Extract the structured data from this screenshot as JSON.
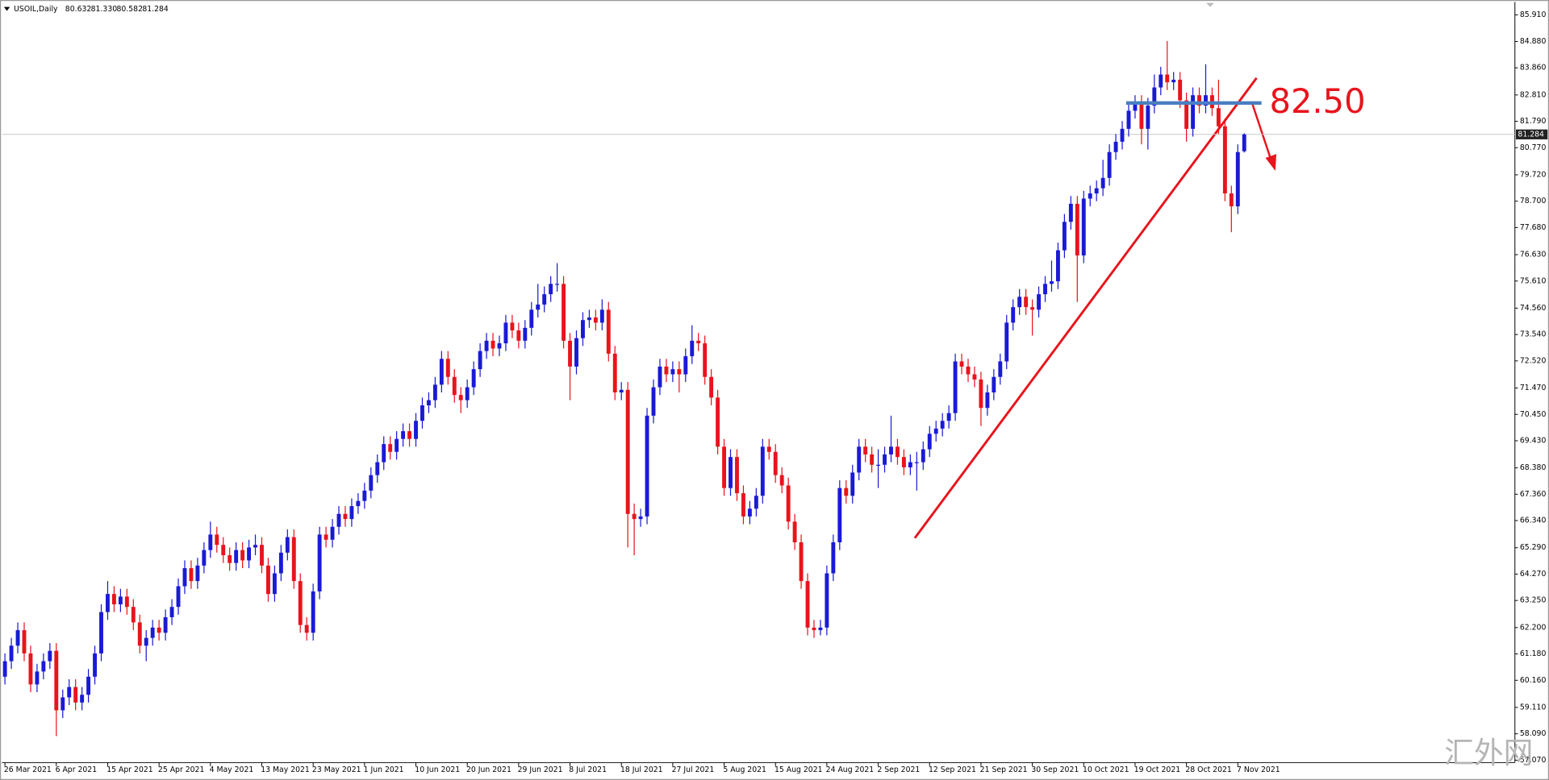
{
  "chart_data": {
    "type": "candlestick",
    "header": {
      "symbol": "USOIL,Daily",
      "ohlc": [
        "80.632",
        "81.330",
        "80.582",
        "81.284"
      ]
    },
    "up_color": "#1a1ad6",
    "down_color": "#e8141c",
    "ylim": [
      56.99,
      86.37
    ],
    "yticks": [
      {
        "value": 85.91,
        "label": "85.910"
      },
      {
        "value": 84.88,
        "label": "84.880"
      },
      {
        "value": 83.86,
        "label": "83.860"
      },
      {
        "value": 82.81,
        "label": "82.810"
      },
      {
        "value": 81.79,
        "label": "81.790"
      },
      {
        "value": 80.77,
        "label": "80.770"
      },
      {
        "value": 79.72,
        "label": "79.720"
      },
      {
        "value": 78.7,
        "label": "78.700"
      },
      {
        "value": 77.68,
        "label": "77.680"
      },
      {
        "value": 76.63,
        "label": "76.630"
      },
      {
        "value": 75.61,
        "label": "75.610"
      },
      {
        "value": 74.56,
        "label": "74.560"
      },
      {
        "value": 73.54,
        "label": "73.540"
      },
      {
        "value": 72.52,
        "label": "72.520"
      },
      {
        "value": 71.47,
        "label": "71.470"
      },
      {
        "value": 70.45,
        "label": "70.450"
      },
      {
        "value": 69.43,
        "label": "69.430"
      },
      {
        "value": 68.38,
        "label": "68.380"
      },
      {
        "value": 67.36,
        "label": "67.360"
      },
      {
        "value": 66.34,
        "label": "66.340"
      },
      {
        "value": 65.29,
        "label": "65.290"
      },
      {
        "value": 64.27,
        "label": "64.270"
      },
      {
        "value": 63.25,
        "label": "63.250"
      },
      {
        "value": 62.2,
        "label": "62.200"
      },
      {
        "value": 61.18,
        "label": "61.180"
      },
      {
        "value": 60.16,
        "label": "60.160"
      },
      {
        "value": 59.11,
        "label": "59.110"
      },
      {
        "value": 58.09,
        "label": "58.090"
      },
      {
        "value": 57.07,
        "label": "57.070"
      }
    ],
    "price_line": {
      "value": 81.284,
      "label": "81.284"
    },
    "level": {
      "value": 82.5,
      "label": "82.50"
    },
    "watermark": "汇外网",
    "categories": [
      "26 Mar 2021",
      null,
      null,
      null,
      null,
      null,
      null,
      null,
      "6 Apr 2021",
      null,
      null,
      null,
      null,
      null,
      null,
      null,
      "15 Apr 2021",
      null,
      null,
      null,
      null,
      null,
      null,
      null,
      "25 Apr 2021",
      null,
      null,
      null,
      null,
      null,
      null,
      null,
      "4 May 2021",
      null,
      null,
      null,
      null,
      null,
      null,
      null,
      "13 May 2021",
      null,
      null,
      null,
      null,
      null,
      null,
      null,
      "23 May 2021",
      null,
      null,
      null,
      null,
      null,
      null,
      null,
      "1 Jun 2021",
      null,
      null,
      null,
      null,
      null,
      null,
      null,
      "10 Jun 2021",
      null,
      null,
      null,
      null,
      null,
      null,
      null,
      "20 Jun 2021",
      null,
      null,
      null,
      null,
      null,
      null,
      null,
      "29 Jun 2021",
      null,
      null,
      null,
      null,
      null,
      null,
      null,
      "8 Jul 2021",
      null,
      null,
      null,
      null,
      null,
      null,
      null,
      "18 Jul 2021",
      null,
      null,
      null,
      null,
      null,
      null,
      null,
      "27 Jul 2021",
      null,
      null,
      null,
      null,
      null,
      null,
      null,
      "5 Aug 2021",
      null,
      null,
      null,
      null,
      null,
      null,
      null,
      "15 Aug 2021",
      null,
      null,
      null,
      null,
      null,
      null,
      null,
      "24 Aug 2021",
      null,
      null,
      null,
      null,
      null,
      null,
      null,
      "2 Sep 2021",
      null,
      null,
      null,
      null,
      null,
      null,
      null,
      "12 Sep 2021",
      null,
      null,
      null,
      null,
      null,
      null,
      null,
      "21 Sep 2021",
      null,
      null,
      null,
      null,
      null,
      null,
      null,
      "30 Sep 2021",
      null,
      null,
      null,
      null,
      null,
      null,
      null,
      "10 Oct 2021",
      null,
      null,
      null,
      null,
      null,
      null,
      null,
      "19 Oct 2021",
      null,
      null,
      null,
      null,
      null,
      null,
      null,
      "28 Oct 2021",
      null,
      null,
      null,
      null,
      null,
      null,
      null,
      "7 Nov 2021",
      null
    ],
    "ohlc": [
      [
        60.3,
        61.2,
        60.0,
        60.9
      ],
      [
        60.9,
        61.8,
        60.6,
        61.5
      ],
      [
        61.5,
        62.4,
        61.2,
        62.1
      ],
      [
        62.1,
        62.4,
        60.9,
        61.2
      ],
      [
        61.2,
        61.5,
        59.7,
        60.0
      ],
      [
        60.0,
        60.8,
        59.7,
        60.5
      ],
      [
        60.5,
        61.2,
        60.2,
        60.9
      ],
      [
        60.9,
        61.6,
        60.6,
        61.3
      ],
      [
        61.3,
        61.6,
        58.0,
        59.0
      ],
      [
        59.0,
        59.8,
        58.7,
        59.5
      ],
      [
        59.5,
        60.2,
        59.2,
        59.9
      ],
      [
        59.9,
        60.2,
        59.0,
        59.3
      ],
      [
        59.3,
        59.9,
        59.0,
        59.6
      ],
      [
        59.6,
        60.6,
        59.3,
        60.3
      ],
      [
        60.3,
        61.5,
        60.0,
        61.2
      ],
      [
        61.2,
        63.1,
        60.9,
        62.8
      ],
      [
        62.8,
        64.0,
        62.5,
        63.5
      ],
      [
        63.5,
        63.8,
        62.8,
        63.1
      ],
      [
        63.1,
        63.7,
        62.8,
        63.4
      ],
      [
        63.4,
        63.7,
        62.7,
        63.0
      ],
      [
        63.0,
        63.3,
        62.1,
        62.4
      ],
      [
        62.4,
        62.7,
        61.2,
        61.5
      ],
      [
        61.5,
        62.1,
        60.9,
        61.8
      ],
      [
        61.8,
        62.5,
        61.5,
        62.2
      ],
      [
        62.2,
        62.5,
        61.7,
        62.0
      ],
      [
        62.0,
        62.9,
        61.7,
        62.6
      ],
      [
        62.6,
        63.3,
        62.3,
        63.0
      ],
      [
        63.0,
        64.1,
        62.7,
        63.8
      ],
      [
        63.8,
        64.8,
        63.5,
        64.5
      ],
      [
        64.5,
        64.8,
        63.7,
        64.0
      ],
      [
        64.0,
        64.9,
        63.7,
        64.6
      ],
      [
        64.6,
        65.5,
        64.3,
        65.2
      ],
      [
        65.2,
        66.3,
        64.9,
        65.8
      ],
      [
        65.8,
        66.1,
        65.1,
        65.4
      ],
      [
        65.4,
        65.7,
        64.7,
        65.0
      ],
      [
        65.0,
        65.3,
        64.4,
        64.7
      ],
      [
        64.7,
        65.5,
        64.4,
        65.2
      ],
      [
        65.2,
        65.5,
        64.5,
        64.8
      ],
      [
        64.8,
        65.6,
        64.5,
        65.3
      ],
      [
        65.3,
        65.8,
        65.0,
        65.4
      ],
      [
        65.4,
        65.7,
        64.3,
        64.6
      ],
      [
        64.6,
        64.9,
        63.2,
        63.5
      ],
      [
        63.5,
        64.6,
        63.2,
        64.3
      ],
      [
        64.3,
        65.4,
        64.0,
        65.1
      ],
      [
        65.1,
        66.0,
        64.8,
        65.7
      ],
      [
        65.7,
        66.0,
        63.7,
        64.0
      ],
      [
        64.0,
        64.3,
        62.0,
        62.3
      ],
      [
        62.3,
        62.6,
        61.7,
        62.0
      ],
      [
        62.0,
        63.9,
        61.7,
        63.6
      ],
      [
        63.6,
        66.1,
        63.3,
        65.8
      ],
      [
        65.8,
        66.1,
        65.3,
        65.6
      ],
      [
        65.6,
        66.4,
        65.3,
        66.1
      ],
      [
        66.1,
        66.9,
        65.8,
        66.6
      ],
      [
        66.6,
        66.9,
        66.1,
        66.4
      ],
      [
        66.4,
        67.2,
        66.1,
        66.9
      ],
      [
        66.9,
        67.4,
        66.6,
        67.1
      ],
      [
        67.1,
        67.8,
        66.8,
        67.5
      ],
      [
        67.5,
        68.4,
        67.2,
        68.1
      ],
      [
        68.1,
        68.9,
        67.8,
        68.6
      ],
      [
        68.6,
        69.6,
        68.3,
        69.3
      ],
      [
        69.3,
        69.6,
        68.7,
        69.0
      ],
      [
        69.0,
        69.8,
        68.7,
        69.5
      ],
      [
        69.5,
        70.1,
        69.2,
        69.8
      ],
      [
        69.8,
        70.1,
        69.2,
        69.5
      ],
      [
        69.5,
        70.5,
        69.2,
        70.2
      ],
      [
        70.2,
        71.1,
        69.9,
        70.8
      ],
      [
        70.8,
        71.3,
        70.5,
        71.0
      ],
      [
        71.0,
        71.9,
        70.7,
        71.6
      ],
      [
        71.6,
        72.9,
        71.3,
        72.6
      ],
      [
        72.6,
        72.9,
        71.6,
        71.9
      ],
      [
        71.9,
        72.2,
        70.9,
        71.2
      ],
      [
        71.2,
        71.5,
        70.5,
        71.0
      ],
      [
        71.0,
        71.8,
        70.7,
        71.5
      ],
      [
        71.5,
        72.5,
        71.2,
        72.2
      ],
      [
        72.2,
        73.2,
        71.9,
        72.9
      ],
      [
        72.9,
        73.6,
        72.6,
        73.3
      ],
      [
        73.3,
        73.6,
        72.7,
        73.0
      ],
      [
        73.0,
        73.5,
        72.7,
        73.2
      ],
      [
        73.2,
        74.3,
        72.9,
        74.0
      ],
      [
        74.0,
        74.3,
        73.4,
        73.7
      ],
      [
        73.7,
        74.0,
        73.0,
        73.3
      ],
      [
        73.3,
        74.1,
        73.0,
        73.8
      ],
      [
        73.8,
        74.8,
        73.5,
        74.5
      ],
      [
        74.5,
        75.5,
        74.2,
        74.7
      ],
      [
        74.7,
        75.4,
        74.4,
        75.1
      ],
      [
        75.1,
        75.8,
        74.8,
        75.5
      ],
      [
        75.5,
        76.3,
        75.2,
        75.5
      ],
      [
        75.5,
        75.8,
        73.0,
        73.3
      ],
      [
        73.3,
        73.6,
        71.0,
        72.3
      ],
      [
        72.3,
        73.7,
        72.0,
        73.4
      ],
      [
        73.4,
        74.4,
        73.1,
        74.1
      ],
      [
        74.1,
        74.5,
        73.8,
        74.2
      ],
      [
        74.2,
        74.5,
        73.7,
        74.0
      ],
      [
        74.0,
        74.9,
        73.7,
        74.5
      ],
      [
        74.5,
        74.8,
        72.5,
        72.8
      ],
      [
        72.8,
        73.1,
        71.0,
        71.3
      ],
      [
        71.3,
        71.7,
        71.0,
        71.4
      ],
      [
        71.4,
        71.7,
        65.3,
        66.6
      ],
      [
        66.6,
        67.0,
        65.0,
        66.4
      ],
      [
        66.4,
        66.8,
        66.1,
        66.5
      ],
      [
        66.5,
        70.7,
        66.2,
        70.4
      ],
      [
        70.4,
        71.8,
        70.1,
        71.5
      ],
      [
        71.5,
        72.6,
        71.2,
        72.3
      ],
      [
        72.3,
        72.6,
        71.7,
        72.0
      ],
      [
        72.0,
        72.5,
        71.7,
        72.2
      ],
      [
        72.2,
        72.5,
        71.3,
        72.0
      ],
      [
        72.0,
        73.0,
        71.7,
        72.7
      ],
      [
        72.7,
        73.9,
        72.4,
        73.3
      ],
      [
        73.3,
        73.6,
        72.9,
        73.2
      ],
      [
        73.2,
        73.5,
        71.6,
        71.9
      ],
      [
        71.9,
        72.2,
        70.8,
        71.1
      ],
      [
        71.1,
        71.4,
        68.9,
        69.2
      ],
      [
        69.2,
        69.5,
        67.3,
        67.6
      ],
      [
        67.6,
        69.1,
        67.3,
        68.8
      ],
      [
        68.8,
        69.1,
        67.1,
        67.4
      ],
      [
        67.4,
        67.7,
        66.2,
        66.5
      ],
      [
        66.5,
        67.1,
        66.2,
        66.8
      ],
      [
        66.8,
        67.6,
        66.5,
        67.3
      ],
      [
        67.3,
        69.5,
        67.0,
        69.2
      ],
      [
        69.2,
        69.5,
        68.7,
        69.0
      ],
      [
        69.0,
        69.3,
        67.8,
        68.1
      ],
      [
        68.1,
        68.4,
        67.4,
        67.7
      ],
      [
        67.7,
        68.0,
        66.0,
        66.3
      ],
      [
        66.3,
        66.6,
        65.2,
        65.5
      ],
      [
        65.5,
        65.8,
        63.7,
        64.0
      ],
      [
        64.0,
        64.3,
        61.9,
        62.2
      ],
      [
        62.2,
        62.5,
        61.8,
        62.1
      ],
      [
        62.1,
        62.5,
        61.9,
        62.2
      ],
      [
        62.2,
        64.6,
        61.9,
        64.3
      ],
      [
        64.3,
        65.8,
        64.0,
        65.5
      ],
      [
        65.5,
        67.9,
        65.2,
        67.6
      ],
      [
        67.6,
        67.9,
        67.0,
        67.3
      ],
      [
        67.3,
        68.5,
        67.0,
        68.2
      ],
      [
        68.2,
        69.5,
        67.9,
        69.2
      ],
      [
        69.2,
        69.5,
        68.6,
        68.9
      ],
      [
        68.9,
        69.2,
        68.2,
        68.5
      ],
      [
        68.5,
        69.1,
        67.6,
        68.5
      ],
      [
        68.5,
        69.2,
        68.2,
        68.9
      ],
      [
        68.9,
        70.4,
        68.6,
        69.2
      ],
      [
        69.2,
        69.5,
        68.5,
        68.8
      ],
      [
        68.8,
        69.1,
        68.1,
        68.4
      ],
      [
        68.4,
        68.9,
        68.1,
        68.6
      ],
      [
        68.6,
        69.0,
        67.5,
        68.6
      ],
      [
        68.6,
        69.4,
        68.3,
        69.1
      ],
      [
        69.1,
        70.0,
        68.8,
        69.7
      ],
      [
        69.7,
        70.2,
        69.4,
        69.9
      ],
      [
        69.9,
        70.5,
        69.6,
        70.2
      ],
      [
        70.2,
        70.8,
        69.9,
        70.5
      ],
      [
        70.5,
        72.8,
        70.2,
        72.5
      ],
      [
        72.5,
        72.8,
        72.0,
        72.3
      ],
      [
        72.3,
        72.6,
        71.7,
        72.0
      ],
      [
        72.0,
        72.3,
        71.5,
        71.8
      ],
      [
        71.8,
        72.1,
        70.0,
        70.7
      ],
      [
        70.7,
        71.6,
        70.4,
        71.3
      ],
      [
        71.3,
        72.2,
        71.0,
        71.9
      ],
      [
        71.9,
        72.8,
        71.6,
        72.5
      ],
      [
        72.5,
        74.3,
        72.2,
        74.0
      ],
      [
        74.0,
        74.9,
        73.7,
        74.6
      ],
      [
        74.6,
        75.3,
        74.3,
        75.0
      ],
      [
        75.0,
        75.3,
        74.3,
        74.6
      ],
      [
        74.6,
        74.9,
        73.5,
        74.5
      ],
      [
        74.5,
        75.4,
        74.2,
        75.1
      ],
      [
        75.1,
        75.8,
        74.8,
        75.5
      ],
      [
        75.5,
        76.4,
        75.2,
        75.6
      ],
      [
        75.6,
        77.1,
        75.3,
        76.8
      ],
      [
        76.8,
        78.2,
        76.5,
        77.9
      ],
      [
        77.9,
        78.9,
        77.6,
        78.6
      ],
      [
        78.6,
        78.9,
        74.8,
        76.6
      ],
      [
        76.6,
        79.1,
        76.3,
        78.8
      ],
      [
        78.8,
        79.3,
        78.5,
        79.0
      ],
      [
        79.0,
        79.5,
        78.7,
        79.2
      ],
      [
        79.2,
        80.3,
        78.9,
        79.6
      ],
      [
        79.6,
        80.9,
        79.3,
        80.6
      ],
      [
        80.6,
        81.3,
        80.3,
        81.0
      ],
      [
        81.0,
        81.8,
        80.7,
        81.5
      ],
      [
        81.5,
        82.5,
        81.2,
        82.2
      ],
      [
        82.2,
        82.8,
        81.9,
        82.5
      ],
      [
        82.5,
        82.8,
        80.9,
        81.5
      ],
      [
        81.5,
        82.7,
        80.7,
        82.4
      ],
      [
        82.4,
        83.6,
        82.1,
        83.1
      ],
      [
        83.1,
        83.9,
        82.8,
        83.6
      ],
      [
        83.6,
        84.9,
        83.0,
        83.3
      ],
      [
        83.3,
        83.7,
        83.0,
        83.4
      ],
      [
        83.4,
        83.7,
        82.3,
        82.6
      ],
      [
        82.6,
        82.9,
        81.0,
        81.5
      ],
      [
        81.5,
        83.1,
        81.2,
        82.8
      ],
      [
        82.8,
        83.1,
        82.1,
        82.4
      ],
      [
        82.4,
        84.0,
        82.1,
        82.8
      ],
      [
        82.8,
        83.1,
        82.0,
        82.3
      ],
      [
        82.3,
        83.4,
        81.3,
        81.6
      ],
      [
        81.6,
        81.9,
        78.7,
        79.0
      ],
      [
        79.0,
        79.3,
        77.5,
        78.5
      ],
      [
        78.5,
        80.9,
        78.2,
        80.6
      ],
      [
        80.632,
        81.33,
        80.582,
        81.284
      ]
    ]
  }
}
